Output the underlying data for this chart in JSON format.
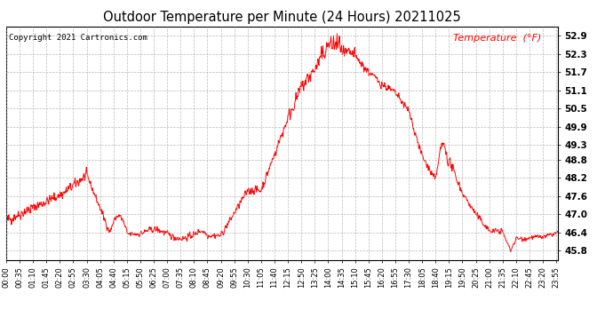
{
  "title": "Outdoor Temperature per Minute (24 Hours) 20211025",
  "copyright_text": "Copyright 2021 Cartronics.com",
  "legend_label": "Temperature  (°F)",
  "line_color": "red",
  "background_color": "white",
  "grid_color": "#aaaaaa",
  "yticks": [
    45.8,
    46.4,
    47.0,
    47.6,
    48.2,
    48.8,
    49.3,
    49.9,
    50.5,
    51.1,
    51.7,
    52.3,
    52.9
  ],
  "ylim": [
    45.5,
    53.2
  ],
  "xtick_labels": [
    "00:00",
    "00:35",
    "01:10",
    "01:45",
    "02:20",
    "02:55",
    "03:30",
    "04:05",
    "04:40",
    "05:15",
    "05:50",
    "06:25",
    "07:00",
    "07:35",
    "08:10",
    "08:45",
    "09:20",
    "09:55",
    "10:30",
    "11:05",
    "11:40",
    "12:15",
    "12:50",
    "13:25",
    "14:00",
    "14:35",
    "15:10",
    "15:45",
    "16:20",
    "16:55",
    "17:30",
    "18:05",
    "18:40",
    "19:15",
    "19:50",
    "20:25",
    "21:00",
    "21:35",
    "22:10",
    "22:45",
    "23:20",
    "23:55"
  ]
}
